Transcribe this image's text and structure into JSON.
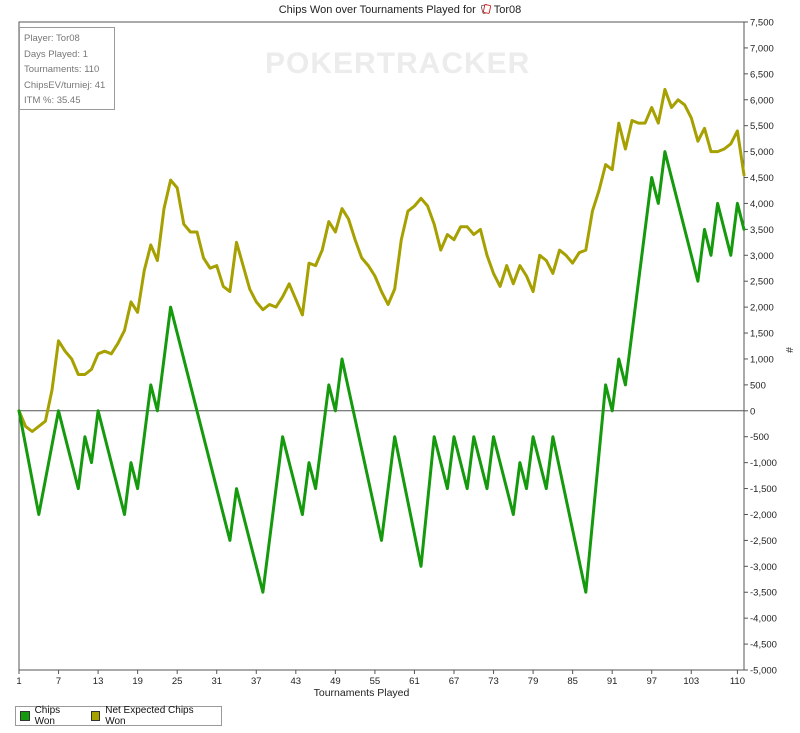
{
  "title": "Chips Won over Tournaments Played for",
  "player_name": "Tor08",
  "watermark": "POKERTRACKER",
  "stats": {
    "player": "Player: Tor08",
    "days": "Days Played: 1",
    "tournaments": "Tournaments: 110",
    "chipsev": "ChipsEV/turniej: 41",
    "itm": "ITM %: 35.45"
  },
  "colors": {
    "chips_won": "#159a0e",
    "net_expected": "#a6a000",
    "zero_line": "#555555",
    "axis": "#555555"
  },
  "chart_data": {
    "type": "line",
    "title": "Chips Won over Tournaments Played for Tor08",
    "xlabel": "Tournaments Played",
    "ylabel": "#",
    "xlim": [
      1,
      110
    ],
    "ylim": [
      -5000,
      7500
    ],
    "x_ticks": [
      1,
      7,
      13,
      19,
      25,
      31,
      37,
      43,
      49,
      55,
      61,
      67,
      73,
      79,
      85,
      91,
      97,
      103,
      110
    ],
    "y_ticks": [
      7500,
      7000,
      6500,
      6000,
      5500,
      5000,
      4500,
      4000,
      3500,
      3000,
      2500,
      2000,
      1500,
      1000,
      500,
      0,
      -500,
      -1000,
      -1500,
      -2000,
      -2500,
      -3000,
      -3500,
      -4000,
      -4500,
      -5000
    ],
    "y_tick_labels": [
      "7,500",
      "7,000",
      "6,500",
      "6,000",
      "5,500",
      "5,000",
      "4,500",
      "4,000",
      "3,500",
      "3,000",
      "2,500",
      "2,000",
      "1,500",
      "1,000",
      "500",
      "0",
      "-500",
      "-1,000",
      "-1,500",
      "-2,000",
      "-2,500",
      "-3,000",
      "-3,500",
      "-4,000",
      "-4,500",
      "-5,000"
    ],
    "grid": false,
    "legend_position": "bottom-left",
    "series": [
      {
        "name": "Chips Won",
        "points": [
          [
            1,
            0
          ],
          [
            4,
            -2000
          ],
          [
            7,
            0
          ],
          [
            10,
            -1500
          ],
          [
            11,
            -500
          ],
          [
            12,
            -1000
          ],
          [
            13,
            0
          ],
          [
            17,
            -2000
          ],
          [
            18,
            -1000
          ],
          [
            19,
            -1500
          ],
          [
            21,
            500
          ],
          [
            22,
            0
          ],
          [
            24,
            2000
          ],
          [
            33,
            -2500
          ],
          [
            34,
            -1500
          ],
          [
            38,
            -3500
          ],
          [
            41,
            -500
          ],
          [
            44,
            -2000
          ],
          [
            45,
            -1000
          ],
          [
            46,
            -1500
          ],
          [
            48,
            500
          ],
          [
            49,
            0
          ],
          [
            50,
            1000
          ],
          [
            56,
            -2500
          ],
          [
            58,
            -500
          ],
          [
            62,
            -3000
          ],
          [
            64,
            -500
          ],
          [
            65,
            -1000
          ],
          [
            66,
            -1500
          ],
          [
            67,
            -500
          ],
          [
            69,
            -1500
          ],
          [
            70,
            -500
          ],
          [
            71,
            -1000
          ],
          [
            72,
            -1500
          ],
          [
            73,
            -500
          ],
          [
            76,
            -2000
          ],
          [
            77,
            -1000
          ],
          [
            78,
            -1500
          ],
          [
            79,
            -500
          ],
          [
            81,
            -1500
          ],
          [
            82,
            -500
          ],
          [
            87,
            -3500
          ],
          [
            90,
            500
          ],
          [
            91,
            0
          ],
          [
            92,
            1000
          ],
          [
            93,
            500
          ],
          [
            97,
            4500
          ],
          [
            98,
            4000
          ],
          [
            99,
            5000
          ],
          [
            104,
            2500
          ],
          [
            105,
            3500
          ],
          [
            106,
            3000
          ],
          [
            107,
            4000
          ],
          [
            109,
            3000
          ],
          [
            110,
            4000
          ],
          [
            111,
            3500
          ]
        ]
      },
      {
        "name": "Net Expected Chips Won",
        "points": [
          [
            1,
            0
          ],
          [
            2,
            -300
          ],
          [
            3,
            -400
          ],
          [
            5,
            -200
          ],
          [
            6,
            400
          ],
          [
            7,
            1350
          ],
          [
            8,
            1150
          ],
          [
            9,
            1000
          ],
          [
            10,
            700
          ],
          [
            11,
            700
          ],
          [
            12,
            800
          ],
          [
            13,
            1100
          ],
          [
            14,
            1150
          ],
          [
            15,
            1100
          ],
          [
            16,
            1300
          ],
          [
            17,
            1550
          ],
          [
            18,
            2100
          ],
          [
            19,
            1900
          ],
          [
            20,
            2700
          ],
          [
            21,
            3200
          ],
          [
            22,
            2900
          ],
          [
            23,
            3900
          ],
          [
            24,
            4450
          ],
          [
            25,
            4300
          ],
          [
            26,
            3600
          ],
          [
            27,
            3450
          ],
          [
            28,
            3450
          ],
          [
            29,
            2950
          ],
          [
            30,
            2750
          ],
          [
            31,
            2800
          ],
          [
            32,
            2400
          ],
          [
            33,
            2300
          ],
          [
            34,
            3250
          ],
          [
            35,
            2800
          ],
          [
            36,
            2350
          ],
          [
            37,
            2100
          ],
          [
            38,
            1950
          ],
          [
            39,
            2050
          ],
          [
            40,
            2000
          ],
          [
            41,
            2200
          ],
          [
            42,
            2450
          ],
          [
            43,
            2150
          ],
          [
            44,
            1850
          ],
          [
            45,
            2850
          ],
          [
            46,
            2800
          ],
          [
            47,
            3100
          ],
          [
            48,
            3650
          ],
          [
            49,
            3450
          ],
          [
            50,
            3900
          ],
          [
            51,
            3700
          ],
          [
            52,
            3300
          ],
          [
            53,
            2950
          ],
          [
            54,
            2800
          ],
          [
            55,
            2600
          ],
          [
            56,
            2300
          ],
          [
            57,
            2050
          ],
          [
            58,
            2350
          ],
          [
            59,
            3300
          ],
          [
            60,
            3850
          ],
          [
            61,
            3950
          ],
          [
            62,
            4100
          ],
          [
            63,
            3950
          ],
          [
            64,
            3600
          ],
          [
            65,
            3100
          ],
          [
            66,
            3400
          ],
          [
            67,
            3300
          ],
          [
            68,
            3550
          ],
          [
            69,
            3550
          ],
          [
            70,
            3400
          ],
          [
            71,
            3500
          ],
          [
            72,
            3000
          ],
          [
            73,
            2650
          ],
          [
            74,
            2400
          ],
          [
            75,
            2800
          ],
          [
            76,
            2450
          ],
          [
            77,
            2800
          ],
          [
            78,
            2600
          ],
          [
            79,
            2300
          ],
          [
            80,
            3000
          ],
          [
            81,
            2900
          ],
          [
            82,
            2650
          ],
          [
            83,
            3100
          ],
          [
            84,
            3000
          ],
          [
            85,
            2850
          ],
          [
            86,
            3050
          ],
          [
            87,
            3100
          ],
          [
            88,
            3850
          ],
          [
            89,
            4250
          ],
          [
            90,
            4750
          ],
          [
            91,
            4650
          ],
          [
            92,
            5550
          ],
          [
            93,
            5050
          ],
          [
            94,
            5600
          ],
          [
            95,
            5550
          ],
          [
            96,
            5550
          ],
          [
            97,
            5850
          ],
          [
            98,
            5550
          ],
          [
            99,
            6200
          ],
          [
            100,
            5850
          ],
          [
            101,
            6000
          ],
          [
            102,
            5900
          ],
          [
            103,
            5650
          ],
          [
            104,
            5200
          ],
          [
            105,
            5450
          ],
          [
            106,
            5000
          ],
          [
            107,
            5000
          ],
          [
            108,
            5050
          ],
          [
            109,
            5150
          ],
          [
            110,
            5400
          ],
          [
            111,
            4550
          ]
        ]
      }
    ]
  }
}
